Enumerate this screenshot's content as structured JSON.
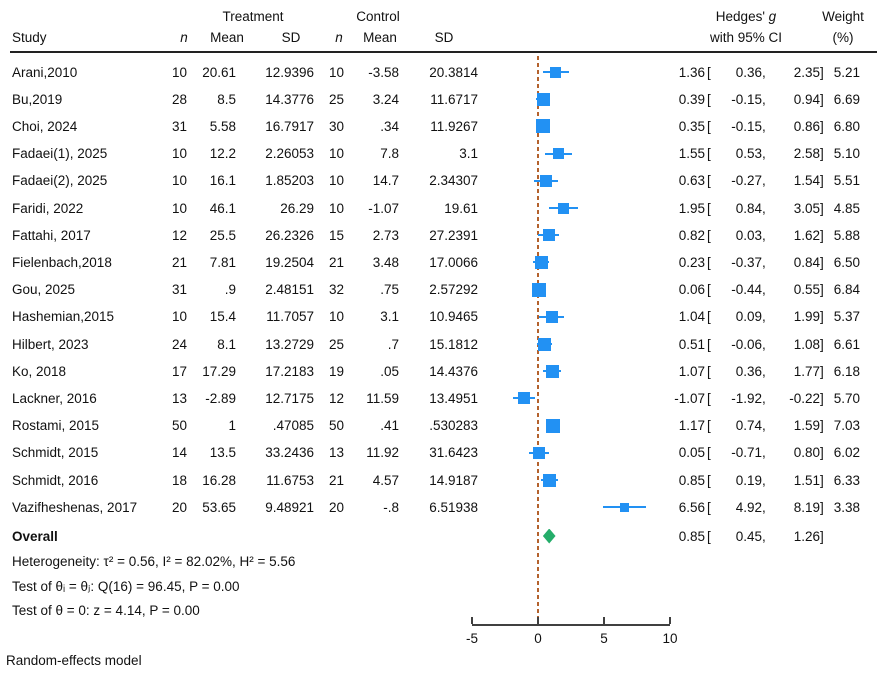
{
  "header": {
    "group_treatment": "Treatment",
    "group_control": "Control",
    "study": "Study",
    "n": "n",
    "mean": "Mean",
    "sd": "SD",
    "effect_prefix": "Hedges'",
    "effect_italic": "g",
    "effect_line2": "with 95% CI",
    "weight_line1": "Weight",
    "weight_line2": "(%)"
  },
  "punct": {
    "open": "[",
    "comma": ",",
    "close": "]"
  },
  "rows": [
    {
      "study": "Arani,2010",
      "n1": "10",
      "mean1": "20.61",
      "sd1": "12.9396",
      "n2": "10",
      "mean2": "-3.58",
      "sd2": "20.3814",
      "est": "1.36",
      "lo": "0.36",
      "hi": "2.35",
      "weight": "5.21"
    },
    {
      "study": "Bu,2019",
      "n1": "28",
      "mean1": "8.5",
      "sd1": "14.3776",
      "n2": "25",
      "mean2": "3.24",
      "sd2": "11.6717",
      "est": "0.39",
      "lo": "-0.15",
      "hi": "0.94",
      "weight": "6.69"
    },
    {
      "study": "Choi, 2024",
      "n1": "31",
      "mean1": "5.58",
      "sd1": "16.7917",
      "n2": "30",
      "mean2": ".34",
      "sd2": "11.9267",
      "est": "0.35",
      "lo": "-0.15",
      "hi": "0.86",
      "weight": "6.80"
    },
    {
      "study": "Fadaei(1), 2025",
      "n1": "10",
      "mean1": "12.2",
      "sd1": "2.26053",
      "n2": "10",
      "mean2": "7.8",
      "sd2": "3.1",
      "est": "1.55",
      "lo": "0.53",
      "hi": "2.58",
      "weight": "5.10"
    },
    {
      "study": "Fadaei(2), 2025",
      "n1": "10",
      "mean1": "16.1",
      "sd1": "1.85203",
      "n2": "10",
      "mean2": "14.7",
      "sd2": "2.34307",
      "est": "0.63",
      "lo": "-0.27",
      "hi": "1.54",
      "weight": "5.51"
    },
    {
      "study": "Faridi, 2022",
      "n1": "10",
      "mean1": "46.1",
      "sd1": "26.29",
      "n2": "10",
      "mean2": "-1.07",
      "sd2": "19.61",
      "est": "1.95",
      "lo": "0.84",
      "hi": "3.05",
      "weight": "4.85"
    },
    {
      "study": "Fattahi, 2017",
      "n1": "12",
      "mean1": "25.5",
      "sd1": "26.2326",
      "n2": "15",
      "mean2": "2.73",
      "sd2": "27.2391",
      "est": "0.82",
      "lo": "0.03",
      "hi": "1.62",
      "weight": "5.88"
    },
    {
      "study": "Fielenbach,2018",
      "n1": "21",
      "mean1": "7.81",
      "sd1": "19.2504",
      "n2": "21",
      "mean2": "3.48",
      "sd2": "17.0066",
      "est": "0.23",
      "lo": "-0.37",
      "hi": "0.84",
      "weight": "6.50"
    },
    {
      "study": "Gou, 2025",
      "n1": "31",
      "mean1": ".9",
      "sd1": "2.48151",
      "n2": "32",
      "mean2": ".75",
      "sd2": "2.57292",
      "est": "0.06",
      "lo": "-0.44",
      "hi": "0.55",
      "weight": "6.84"
    },
    {
      "study": "Hashemian,2015",
      "n1": "10",
      "mean1": "15.4",
      "sd1": "11.7057",
      "n2": "10",
      "mean2": "3.1",
      "sd2": "10.9465",
      "est": "1.04",
      "lo": "0.09",
      "hi": "1.99",
      "weight": "5.37"
    },
    {
      "study": "Hilbert, 2023",
      "n1": "24",
      "mean1": "8.1",
      "sd1": "13.2729",
      "n2": "25",
      "mean2": ".7",
      "sd2": "15.1812",
      "est": "0.51",
      "lo": "-0.06",
      "hi": "1.08",
      "weight": "6.61"
    },
    {
      "study": "Ko, 2018",
      "n1": "17",
      "mean1": "17.29",
      "sd1": "17.2183",
      "n2": "19",
      "mean2": ".05",
      "sd2": "14.4376",
      "est": "1.07",
      "lo": "0.36",
      "hi": "1.77",
      "weight": "6.18"
    },
    {
      "study": "Lackner, 2016",
      "n1": "13",
      "mean1": "-2.89",
      "sd1": "12.7175",
      "n2": "12",
      "mean2": "11.59",
      "sd2": "13.4951",
      "est": "-1.07",
      "lo": "-1.92",
      "hi": "-0.22",
      "weight": "5.70"
    },
    {
      "study": "Rostami, 2015",
      "n1": "50",
      "mean1": "1",
      "sd1": ".47085",
      "n2": "50",
      "mean2": ".41",
      "sd2": ".530283",
      "est": "1.17",
      "lo": "0.74",
      "hi": "1.59",
      "weight": "7.03"
    },
    {
      "study": "Schmidt, 2015",
      "n1": "14",
      "mean1": "13.5",
      "sd1": "33.2436",
      "n2": "13",
      "mean2": "11.92",
      "sd2": "31.6423",
      "est": "0.05",
      "lo": "-0.71",
      "hi": "0.80",
      "weight": "6.02"
    },
    {
      "study": "Schmidt, 2016",
      "n1": "18",
      "mean1": "16.28",
      "sd1": "11.6753",
      "n2": "21",
      "mean2": "4.57",
      "sd2": "14.9187",
      "est": "0.85",
      "lo": "0.19",
      "hi": "1.51",
      "weight": "6.33"
    },
    {
      "study": "Vazifheshenas, 2017",
      "n1": "20",
      "mean1": "53.65",
      "sd1": "9.48921",
      "n2": "20",
      "mean2": "-.8",
      "sd2": "6.51938",
      "est": "6.56",
      "lo": "4.92",
      "hi": "8.19",
      "weight": "3.38"
    }
  ],
  "overall": {
    "label": "Overall",
    "est": "0.85",
    "lo": "0.45",
    "hi": "1.26"
  },
  "stats": {
    "heterogeneity": "Heterogeneity: τ² = 0.56, I² = 82.02%, H² = 5.56",
    "test_between": "Test of θᵢ = θⱼ: Q(16) = 96.45, P = 0.00",
    "test_zero": "Test of θ = 0: z = 4.14, P = 0.00"
  },
  "footer": "Random-effects model",
  "colors": {
    "marker_blue": "#2291f3",
    "diamond_green": "#24ad6a",
    "refline_brown": "#b4622d"
  },
  "chart_data": {
    "type": "scatter",
    "subtype": "forest-plot",
    "title": "",
    "effect_measure": "Hedges' g with 95% CI",
    "x_axis": {
      "range": [
        -5,
        10
      ],
      "ticks": [
        -5,
        0,
        5,
        10
      ],
      "reference_line": 0
    },
    "legend_position": "none",
    "grid": false,
    "studies": [
      {
        "study": "Arani,2010",
        "t_n": 10,
        "t_mean": 20.61,
        "t_sd": 12.9396,
        "c_n": 10,
        "c_mean": -3.58,
        "c_sd": 20.3814,
        "g": 1.36,
        "ci": [
          0.36,
          2.35
        ],
        "weight_pct": 5.21
      },
      {
        "study": "Bu,2019",
        "t_n": 28,
        "t_mean": 8.5,
        "t_sd": 14.3776,
        "c_n": 25,
        "c_mean": 3.24,
        "c_sd": 11.6717,
        "g": 0.39,
        "ci": [
          -0.15,
          0.94
        ],
        "weight_pct": 6.69
      },
      {
        "study": "Choi, 2024",
        "t_n": 31,
        "t_mean": 5.58,
        "t_sd": 16.7917,
        "c_n": 30,
        "c_mean": 0.34,
        "c_sd": 11.9267,
        "g": 0.35,
        "ci": [
          -0.15,
          0.86
        ],
        "weight_pct": 6.8
      },
      {
        "study": "Fadaei(1), 2025",
        "t_n": 10,
        "t_mean": 12.2,
        "t_sd": 2.26053,
        "c_n": 10,
        "c_mean": 7.8,
        "c_sd": 3.1,
        "g": 1.55,
        "ci": [
          0.53,
          2.58
        ],
        "weight_pct": 5.1
      },
      {
        "study": "Fadaei(2), 2025",
        "t_n": 10,
        "t_mean": 16.1,
        "t_sd": 1.85203,
        "c_n": 10,
        "c_mean": 14.7,
        "c_sd": 2.34307,
        "g": 0.63,
        "ci": [
          -0.27,
          1.54
        ],
        "weight_pct": 5.51
      },
      {
        "study": "Faridi, 2022",
        "t_n": 10,
        "t_mean": 46.1,
        "t_sd": 26.29,
        "c_n": 10,
        "c_mean": -1.07,
        "c_sd": 19.61,
        "g": 1.95,
        "ci": [
          0.84,
          3.05
        ],
        "weight_pct": 4.85
      },
      {
        "study": "Fattahi, 2017",
        "t_n": 12,
        "t_mean": 25.5,
        "t_sd": 26.2326,
        "c_n": 15,
        "c_mean": 2.73,
        "c_sd": 27.2391,
        "g": 0.82,
        "ci": [
          0.03,
          1.62
        ],
        "weight_pct": 5.88
      },
      {
        "study": "Fielenbach,2018",
        "t_n": 21,
        "t_mean": 7.81,
        "t_sd": 19.2504,
        "c_n": 21,
        "c_mean": 3.48,
        "c_sd": 17.0066,
        "g": 0.23,
        "ci": [
          -0.37,
          0.84
        ],
        "weight_pct": 6.5
      },
      {
        "study": "Gou, 2025",
        "t_n": 31,
        "t_mean": 0.9,
        "t_sd": 2.48151,
        "c_n": 32,
        "c_mean": 0.75,
        "c_sd": 2.57292,
        "g": 0.06,
        "ci": [
          -0.44,
          0.55
        ],
        "weight_pct": 6.84
      },
      {
        "study": "Hashemian,2015",
        "t_n": 10,
        "t_mean": 15.4,
        "t_sd": 11.7057,
        "c_n": 10,
        "c_mean": 3.1,
        "c_sd": 10.9465,
        "g": 1.04,
        "ci": [
          0.09,
          1.99
        ],
        "weight_pct": 5.37
      },
      {
        "study": "Hilbert, 2023",
        "t_n": 24,
        "t_mean": 8.1,
        "t_sd": 13.2729,
        "c_n": 25,
        "c_mean": 0.7,
        "c_sd": 15.1812,
        "g": 0.51,
        "ci": [
          -0.06,
          1.08
        ],
        "weight_pct": 6.61
      },
      {
        "study": "Ko, 2018",
        "t_n": 17,
        "t_mean": 17.29,
        "t_sd": 17.2183,
        "c_n": 19,
        "c_mean": 0.05,
        "c_sd": 14.4376,
        "g": 1.07,
        "ci": [
          0.36,
          1.77
        ],
        "weight_pct": 6.18
      },
      {
        "study": "Lackner, 2016",
        "t_n": 13,
        "t_mean": -2.89,
        "t_sd": 12.7175,
        "c_n": 12,
        "c_mean": 11.59,
        "c_sd": 13.4951,
        "g": -1.07,
        "ci": [
          -1.92,
          -0.22
        ],
        "weight_pct": 5.7
      },
      {
        "study": "Rostami, 2015",
        "t_n": 50,
        "t_mean": 1,
        "t_sd": 0.47085,
        "c_n": 50,
        "c_mean": 0.41,
        "c_sd": 0.530283,
        "g": 1.17,
        "ci": [
          0.74,
          1.59
        ],
        "weight_pct": 7.03
      },
      {
        "study": "Schmidt, 2015",
        "t_n": 14,
        "t_mean": 13.5,
        "t_sd": 33.2436,
        "c_n": 13,
        "c_mean": 11.92,
        "c_sd": 31.6423,
        "g": 0.05,
        "ci": [
          -0.71,
          0.8
        ],
        "weight_pct": 6.02
      },
      {
        "study": "Schmidt, 2016",
        "t_n": 18,
        "t_mean": 16.28,
        "t_sd": 11.6753,
        "c_n": 21,
        "c_mean": 4.57,
        "c_sd": 14.9187,
        "g": 0.85,
        "ci": [
          0.19,
          1.51
        ],
        "weight_pct": 6.33
      },
      {
        "study": "Vazifheshenas, 2017",
        "t_n": 20,
        "t_mean": 53.65,
        "t_sd": 9.48921,
        "c_n": 20,
        "c_mean": -0.8,
        "c_sd": 6.51938,
        "g": 6.56,
        "ci": [
          4.92,
          8.19
        ],
        "weight_pct": 3.38
      }
    ],
    "overall": {
      "g": 0.85,
      "ci": [
        0.45,
        1.26
      ]
    },
    "heterogeneity": {
      "tau2": 0.56,
      "I2_pct": 82.02,
      "H2": 5.56,
      "Q_df": 16,
      "Q": 96.45,
      "Q_p": 0.0,
      "z": 4.14,
      "z_p": 0.0
    },
    "model": "Random-effects model"
  }
}
